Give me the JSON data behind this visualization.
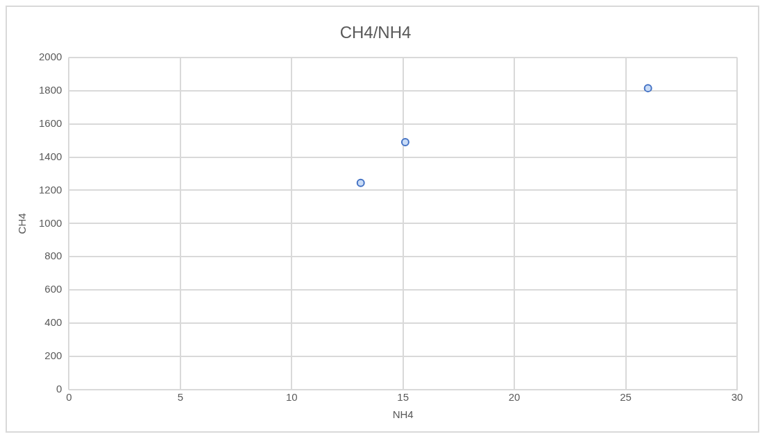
{
  "chart_data": {
    "type": "scatter",
    "title": "CH4/NH4",
    "xlabel": "NH4",
    "ylabel": "CH4",
    "x": [
      13.1,
      15.1,
      26
    ],
    "series": [
      {
        "color": "#4472c4",
        "values": [
          1245,
          1490,
          1815
        ]
      }
    ],
    "xlim": [
      0,
      30
    ],
    "xticks": [
      0,
      5,
      10,
      15,
      20,
      25,
      30
    ],
    "ylim": [
      0,
      2000
    ],
    "yticks": [
      0,
      200,
      400,
      600,
      800,
      1000,
      1200,
      1400,
      1600,
      1800,
      2000
    ],
    "grid": true,
    "legend": false,
    "marker": "circle"
  }
}
